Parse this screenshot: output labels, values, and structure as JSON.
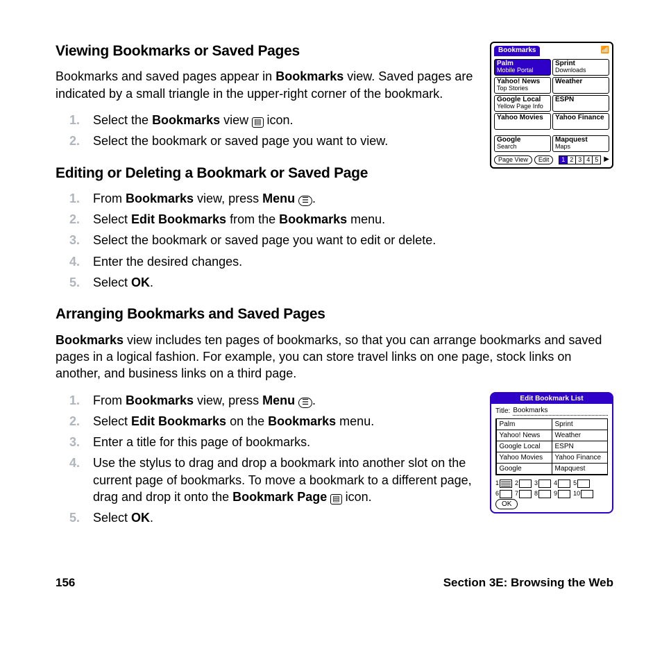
{
  "headings": {
    "h1": "Viewing Bookmarks or Saved Pages",
    "h2": "Editing or Deleting a Bookmark or Saved Page",
    "h3": "Arranging Bookmarks and Saved Pages"
  },
  "para1_a": "Bookmarks and saved pages appear in ",
  "para1_b": "Bookmarks",
  "para1_c": " view. Saved pages are indicated by a small triangle in the upper-right corner of the bookmark.",
  "view_steps": {
    "s1a": "Select the ",
    "s1b": "Bookmarks",
    "s1c": " view ",
    "s1d": " icon.",
    "s2": "Select the bookmark or saved page you want to view."
  },
  "edit_steps": {
    "s1a": "From ",
    "s1b": "Bookmarks",
    "s1c": " view, press ",
    "s1d": "Menu",
    "s1e": " .",
    "s2a": "Select ",
    "s2b": "Edit Bookmarks",
    "s2c": " from the ",
    "s2d": "Bookmarks",
    "s2e": " menu.",
    "s3": "Select the bookmark or saved page you want to edit or delete.",
    "s4": "Enter the desired changes.",
    "s5a": "Select ",
    "s5b": "OK",
    "s5c": "."
  },
  "para2_a": "Bookmarks",
  "para2_b": " view includes ten pages of bookmarks, so that you can arrange bookmarks and saved pages in a logical fashion. For example, you can store travel links on one page, stock links on another, and business links on a third page.",
  "arrange_steps": {
    "s1a": "From ",
    "s1b": "Bookmarks",
    "s1c": " view, press ",
    "s1d": "Menu",
    "s1e": " .",
    "s2a": "Select ",
    "s2b": "Edit Bookmarks",
    "s2c": " on the ",
    "s2d": "Bookmarks",
    "s2e": " menu.",
    "s3": "Enter a title for this page of bookmarks.",
    "s4a": "Use the stylus to drag and drop a bookmark into another slot on the current page of bookmarks. To move a bookmark to a different page, drag and drop it onto the ",
    "s4b": "Bookmark Page",
    "s4c": " icon.",
    "s5a": "Select ",
    "s5b": "OK",
    "s5c": "."
  },
  "footer": {
    "page": "156",
    "section": "Section 3E: Browsing the Web"
  },
  "bm_device": {
    "tab": "Bookmarks",
    "cells": [
      {
        "t1": "Palm",
        "t2": "Mobile Portal",
        "sel": true
      },
      {
        "t1": "Sprint",
        "t2": "Downloads",
        "sel": false
      },
      {
        "t1": "Yahoo! News",
        "t2": "Top Stories",
        "sel": false
      },
      {
        "t1": "Weather",
        "t2": "",
        "sel": false
      },
      {
        "t1": "Google Local",
        "t2": "Yellow Page Info",
        "sel": false
      },
      {
        "t1": "ESPN",
        "t2": "",
        "sel": false
      },
      {
        "t1": "Yahoo Movies",
        "t2": "",
        "sel": false
      },
      {
        "t1": "Yahoo Finance",
        "t2": "",
        "sel": false
      },
      {
        "t1": "Google",
        "t2": "Search",
        "sel": false
      },
      {
        "t1": "Mapquest",
        "t2": "Maps",
        "sel": false
      }
    ],
    "btn1": "Page View",
    "btn2": "Edit",
    "pages": [
      "1",
      "2",
      "3",
      "4",
      "5"
    ],
    "page_selected": 0
  },
  "ebl_dialog": {
    "title": "Edit Bookmark List",
    "field_label": "Title:",
    "field_value": "Bookmarks",
    "cells": [
      "Palm",
      "Sprint",
      "Yahoo! News",
      "Weather",
      "Google Local",
      "ESPN",
      "Yahoo Movies",
      "Yahoo Finance",
      "Google",
      "Mapquest"
    ],
    "pages": [
      "1",
      "2",
      "3",
      "4",
      "5",
      "6",
      "7",
      "8",
      "9",
      "10"
    ],
    "page_selected": 0,
    "ok": "OK"
  }
}
